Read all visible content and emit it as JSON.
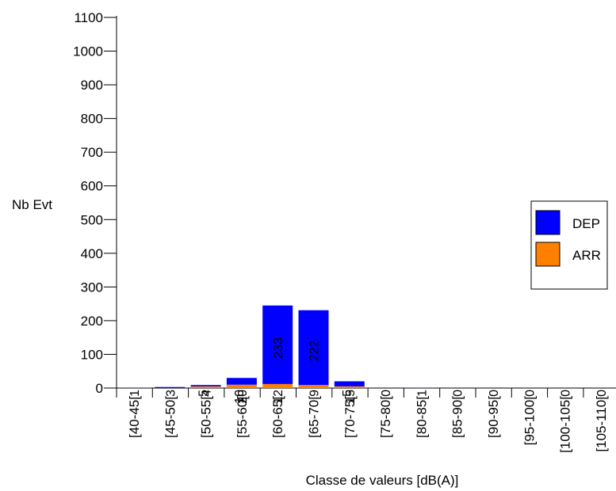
{
  "chart_data": {
    "type": "bar",
    "title": "",
    "xlabel": "Classe de valeurs [dB(A)]",
    "ylabel": "Nb Evt",
    "ylim": [
      0,
      1100
    ],
    "yticks": [
      0,
      100,
      200,
      300,
      400,
      500,
      600,
      700,
      800,
      900,
      1000,
      1100
    ],
    "grid": false,
    "legend_position": "right",
    "categories": [
      "[40-45[",
      "[45-50[",
      "[50-55[",
      "[55-60[",
      "[60-65[",
      "[65-70[",
      "[70-75[",
      "[75-80[",
      "[80-85[",
      "[85-90[",
      "[90-95[",
      "[95-100[",
      "[100-105[",
      "[105-110["
    ],
    "series": [
      {
        "name": "DEP",
        "color": "#0000ff",
        "values": [
          1,
          3,
          4,
          20,
          233,
          222,
          15,
          0,
          1,
          0,
          0,
          0,
          0,
          0
        ]
      },
      {
        "name": "ARR",
        "color": "#ff8000",
        "values": [
          0,
          0,
          5,
          10,
          12,
          9,
          5,
          0,
          0,
          0,
          0,
          0,
          0,
          0
        ]
      }
    ],
    "stacked": true
  }
}
